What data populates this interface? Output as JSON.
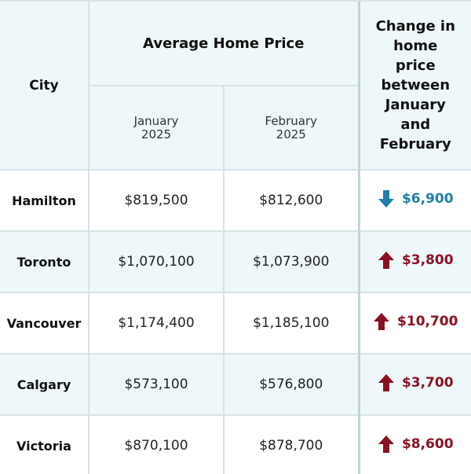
{
  "header": {
    "city_label": "City",
    "avg_price_label": "Average Home Price",
    "month1_line1": "January",
    "month1_line2": "2025",
    "month2_line1": "February",
    "month2_line2": "2025",
    "change_label": "Change in home price between January and February"
  },
  "colors": {
    "down": "#1f7fa8",
    "up": "#8b1122",
    "header_bg": "#eef7f9",
    "border": "#d7e3e6"
  },
  "rows": [
    {
      "city": "Hamilton",
      "jan": "$819,500",
      "feb": "$812,600",
      "change": "$6,900",
      "direction": "down",
      "arrow_icon": "arrow-down-icon"
    },
    {
      "city": "Toronto",
      "jan": "$1,070,100",
      "feb": "$1,073,900",
      "change": "$3,800",
      "direction": "up",
      "arrow_icon": "arrow-up-icon"
    },
    {
      "city": "Vancouver",
      "jan": "$1,174,400",
      "feb": "$1,185,100",
      "change": "$10,700",
      "direction": "up",
      "arrow_icon": "arrow-up-icon"
    },
    {
      "city": "Calgary",
      "jan": "$573,100",
      "feb": "$576,800",
      "change": "$3,700",
      "direction": "up",
      "arrow_icon": "arrow-up-icon"
    },
    {
      "city": "Victoria",
      "jan": "$870,100",
      "feb": "$878,700",
      "change": "$8,600",
      "direction": "up",
      "arrow_icon": "arrow-up-icon"
    }
  ]
}
